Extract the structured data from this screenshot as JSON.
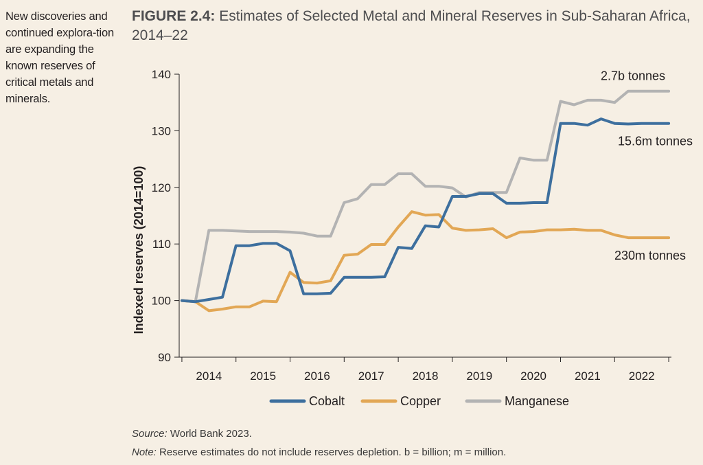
{
  "sidenote": "New discoveries and continued explora-tion are expanding the known reserves of critical metals and minerals.",
  "figure": {
    "number": "FIGURE 2.4:",
    "title": "Estimates of Selected Metal and Mineral Reserves in Sub-Saharan Africa, 2014–22"
  },
  "source": {
    "label": "Source:",
    "text": " World Bank 2023."
  },
  "note": {
    "label": "Note:",
    "text": " Reserve estimates do not include reserves depletion. b = billion; m = million."
  },
  "colors": {
    "cobalt": "#3d6f9e",
    "copper": "#e2a755",
    "manganese": "#b3b3b3",
    "axis": "#231f20",
    "background": "#f6efe4"
  },
  "chart_data": {
    "type": "line",
    "title": "",
    "xlabel": "",
    "ylabel": "Indexed reserves (2014=100)",
    "ylim": [
      90,
      140
    ],
    "yticks": [
      90,
      100,
      110,
      120,
      130,
      140
    ],
    "xlim": [
      2013.45,
      2022.55
    ],
    "xticks": [
      2014,
      2015,
      2016,
      2017,
      2018,
      2019,
      2020,
      2021,
      2022
    ],
    "xticklabels": [
      "2014",
      "2015",
      "2016",
      "2017",
      "2018",
      "2019",
      "2020",
      "2021",
      "2022"
    ],
    "grid": false,
    "legend": "bottom",
    "series": [
      {
        "name": "Cobalt",
        "color": "#3d6f9e",
        "x": [
          2013.5,
          2013.75,
          2014.0,
          2014.25,
          2014.5,
          2014.75,
          2015.0,
          2015.25,
          2015.5,
          2015.75,
          2016.0,
          2016.25,
          2016.5,
          2016.75,
          2017.0,
          2017.25,
          2017.5,
          2017.75,
          2018.0,
          2018.25,
          2018.5,
          2018.75,
          2019.0,
          2019.25,
          2019.5,
          2019.75,
          2020.0,
          2020.25,
          2020.5,
          2020.75,
          2021.0,
          2021.25,
          2021.5,
          2021.75,
          2022.0,
          2022.25,
          2022.5
        ],
        "y": [
          100.0,
          99.8,
          100.2,
          100.6,
          109.7,
          109.7,
          110.1,
          110.1,
          108.8,
          101.2,
          101.2,
          101.3,
          104.1,
          104.1,
          104.1,
          104.2,
          109.4,
          109.2,
          113.2,
          113.0,
          118.4,
          118.4,
          118.9,
          118.9,
          117.2,
          117.2,
          117.3,
          117.3,
          131.3,
          131.3,
          131.0,
          132.1,
          131.3,
          131.2,
          131.3,
          131.3,
          131.3
        ],
        "end_label": "15.6m tonnes"
      },
      {
        "name": "Copper",
        "color": "#e2a755",
        "x": [
          2013.5,
          2013.75,
          2014.0,
          2014.25,
          2014.5,
          2014.75,
          2015.0,
          2015.25,
          2015.5,
          2015.75,
          2016.0,
          2016.25,
          2016.5,
          2016.75,
          2017.0,
          2017.25,
          2017.5,
          2017.75,
          2018.0,
          2018.25,
          2018.5,
          2018.75,
          2019.0,
          2019.25,
          2019.5,
          2019.75,
          2020.0,
          2020.25,
          2020.5,
          2020.75,
          2021.0,
          2021.25,
          2021.5,
          2021.75,
          2022.0,
          2022.25,
          2022.5
        ],
        "y": [
          100.0,
          99.8,
          98.2,
          98.5,
          98.9,
          98.9,
          99.9,
          99.8,
          105.0,
          103.2,
          103.1,
          103.5,
          108.0,
          108.2,
          109.9,
          109.9,
          113.0,
          115.7,
          115.1,
          115.2,
          112.8,
          112.4,
          112.5,
          112.7,
          111.1,
          112.1,
          112.2,
          112.5,
          112.5,
          112.6,
          112.4,
          112.4,
          111.6,
          111.1,
          111.1,
          111.1,
          111.1
        ],
        "end_label": "230m tonnes"
      },
      {
        "name": "Manganese",
        "color": "#b3b3b3",
        "x": [
          2013.5,
          2013.75,
          2014.0,
          2014.25,
          2014.5,
          2014.75,
          2015.0,
          2015.25,
          2015.5,
          2015.75,
          2016.0,
          2016.25,
          2016.5,
          2016.75,
          2017.0,
          2017.25,
          2017.5,
          2017.75,
          2018.0,
          2018.25,
          2018.5,
          2018.75,
          2019.0,
          2019.25,
          2019.5,
          2019.75,
          2020.0,
          2020.25,
          2020.5,
          2020.75,
          2021.0,
          2021.25,
          2021.5,
          2021.75,
          2022.0,
          2022.25,
          2022.5
        ],
        "y": [
          100.0,
          99.8,
          112.4,
          112.4,
          112.3,
          112.2,
          112.2,
          112.2,
          112.1,
          111.9,
          111.4,
          111.4,
          117.3,
          118.0,
          120.5,
          120.5,
          122.4,
          122.4,
          120.2,
          120.2,
          119.9,
          118.3,
          119.1,
          119.1,
          119.1,
          125.2,
          124.8,
          124.8,
          135.2,
          134.6,
          135.4,
          135.4,
          135.0,
          137.0,
          137.0,
          137.0,
          137.0
        ],
        "end_label": "2.7b tonnes"
      }
    ]
  }
}
